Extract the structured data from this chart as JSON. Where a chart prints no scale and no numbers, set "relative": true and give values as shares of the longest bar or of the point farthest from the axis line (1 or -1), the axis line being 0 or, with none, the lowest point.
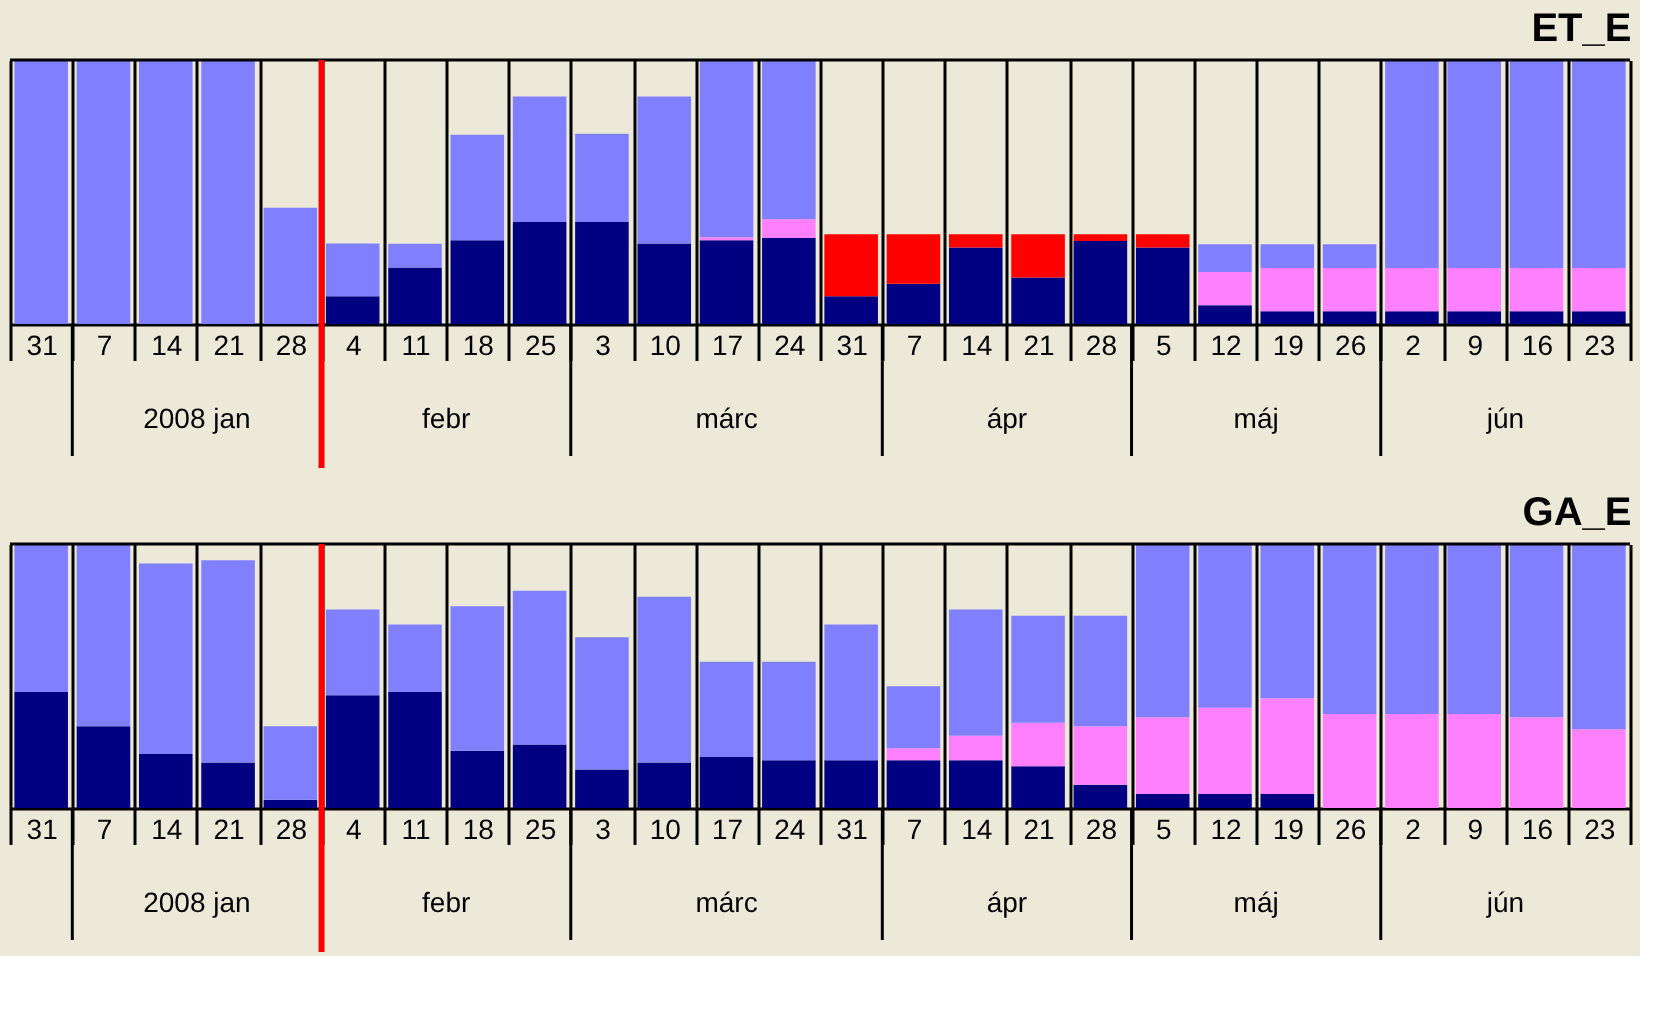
{
  "chart_data": [
    {
      "type": "bar",
      "title": "ET_E",
      "stacked": true,
      "relative": true,
      "legend": false,
      "grid": "x",
      "categories": [
        "31",
        "7",
        "14",
        "21",
        "28",
        "4",
        "11",
        "18",
        "25",
        "3",
        "10",
        "17",
        "24",
        "31",
        "7",
        "14",
        "21",
        "28",
        "5",
        "12",
        "19",
        "26",
        "2",
        "9",
        "16",
        "23"
      ],
      "series": [
        {
          "color": "#000080",
          "values": [
            0,
            0,
            0,
            0,
            0,
            0.105,
            0.214,
            0.317,
            0.386,
            0.386,
            0.305,
            0.317,
            0.326,
            0.105,
            0.152,
            0.29,
            0.176,
            0.314,
            0.29,
            0.071,
            0.048,
            0.048,
            0.048,
            0.048,
            0.048,
            0.048
          ]
        },
        {
          "color": "#ff0000",
          "values": [
            0,
            0,
            0,
            0,
            0,
            0,
            0,
            0,
            0,
            0,
            0,
            0,
            0,
            0.235,
            0.188,
            0.05,
            0.164,
            0.026,
            0.05,
            0,
            0,
            0,
            0,
            0,
            0,
            0
          ]
        },
        {
          "color": "#ff80ff",
          "values": [
            0,
            0,
            0,
            0,
            0,
            0,
            0,
            0,
            0,
            0,
            0,
            0.012,
            0.071,
            0,
            0,
            0,
            0,
            0,
            0,
            0.126,
            0.164,
            0.164,
            0.164,
            0.164,
            0.164,
            0.164
          ]
        },
        {
          "color": "#8080ff",
          "values": [
            1,
            1,
            1,
            1,
            0.44,
            0.2,
            0.09,
            0.4,
            0.476,
            0.335,
            0.557,
            0.671,
            0.603,
            0,
            0,
            0,
            0,
            0,
            0,
            0.105,
            0.09,
            0.09,
            0.788,
            0.788,
            0.788,
            0.788
          ]
        }
      ],
      "ref_lines": [
        {
          "axis": "x",
          "value": "4",
          "color": "#ff0000"
        }
      ],
      "annotations": [
        "2008 jan",
        "febr",
        "márc",
        "ápr",
        "máj",
        "jún"
      ]
    },
    {
      "type": "bar",
      "title": "GA_E",
      "stacked": true,
      "relative": true,
      "legend": false,
      "grid": "x",
      "categories": [
        "31",
        "7",
        "14",
        "21",
        "28",
        "4",
        "11",
        "18",
        "25",
        "3",
        "10",
        "17",
        "24",
        "31",
        "7",
        "14",
        "21",
        "28",
        "5",
        "12",
        "19",
        "26",
        "2",
        "9",
        "16",
        "23"
      ],
      "series": [
        {
          "color": "#000080",
          "values": [
            0.439,
            0.31,
            0.205,
            0.172,
            0.031,
            0.427,
            0.439,
            0.217,
            0.241,
            0.146,
            0.172,
            0.193,
            0.181,
            0.181,
            0.181,
            0.181,
            0.158,
            0.088,
            0.053,
            0.053,
            0.053,
            0,
            0,
            0,
            0,
            0
          ]
        },
        {
          "color": "#ff80ff",
          "values": [
            0,
            0,
            0,
            0,
            0,
            0,
            0,
            0,
            0,
            0,
            0,
            0,
            0,
            0,
            0.045,
            0.093,
            0.165,
            0.222,
            0.291,
            0.327,
            0.363,
            0.356,
            0.356,
            0.356,
            0.344,
            0.298
          ]
        },
        {
          "color": "#8080ff",
          "values": [
            0.561,
            0.69,
            0.721,
            0.766,
            0.279,
            0.325,
            0.256,
            0.547,
            0.582,
            0.501,
            0.628,
            0.361,
            0.373,
            0.514,
            0.235,
            0.478,
            0.405,
            0.418,
            0.656,
            0.62,
            0.584,
            0.644,
            0.644,
            0.644,
            0.656,
            0.702
          ]
        }
      ],
      "ref_lines": [
        {
          "axis": "x",
          "value": "4",
          "color": "#ff0000"
        }
      ],
      "annotations": [
        "2008 jan",
        "febr",
        "márc",
        "ápr",
        "máj",
        "jún"
      ]
    }
  ]
}
